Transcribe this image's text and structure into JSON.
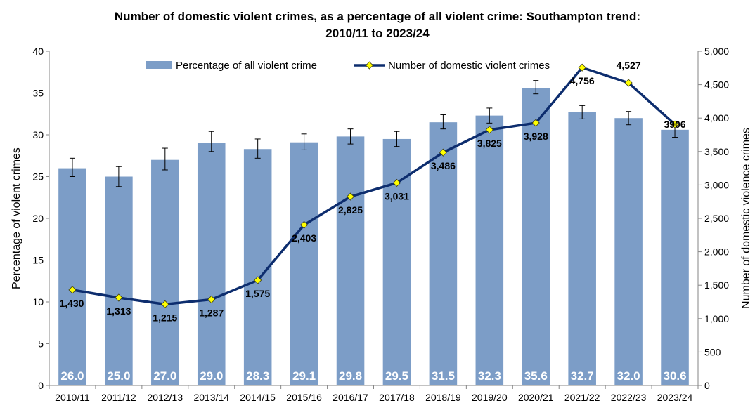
{
  "chart_data": {
    "type": "bar",
    "title": "Number of domestic violent crimes, as a percentage of all violent crime: Southampton trend:",
    "subtitle": "2010/11 to 2023/24",
    "categories": [
      "2010/11",
      "2011/12",
      "2012/13",
      "2013/14",
      "2014/15",
      "2015/16",
      "2016/17",
      "2017/18",
      "2018/19",
      "2019/20",
      "2020/21",
      "2021/22",
      "2022/23",
      "2023/24"
    ],
    "ylabel": "Percentage of violent crimes",
    "y2label": "Number of domestic violence crimes",
    "ylim": [
      0,
      40
    ],
    "y2lim": [
      0,
      5000
    ],
    "yticks": [
      "0",
      "5",
      "10",
      "15",
      "20",
      "25",
      "30",
      "35",
      "40"
    ],
    "y2ticks": [
      "0",
      "500",
      "1,000",
      "1,500",
      "2,000",
      "2,500",
      "3,000",
      "3,500",
      "4,000",
      "4,500",
      "5,000"
    ],
    "grid": false,
    "legend_position": "top",
    "series": [
      {
        "name": "Percentage of all violent crime",
        "type": "bar",
        "axis": "left",
        "color": "#7c9dc7",
        "values": [
          26.0,
          25.0,
          27.0,
          29.0,
          28.3,
          29.1,
          29.8,
          29.5,
          31.5,
          32.3,
          35.6,
          32.7,
          32.0,
          30.6
        ],
        "labels": [
          "26.0",
          "25.0",
          "27.0",
          "29.0",
          "28.3",
          "29.1",
          "29.8",
          "29.5",
          "31.5",
          "32.3",
          "35.6",
          "32.7",
          "32.0",
          "30.6"
        ],
        "error_low": [
          25.0,
          23.8,
          25.8,
          28.0,
          27.2,
          28.2,
          28.9,
          28.6,
          30.7,
          31.4,
          34.9,
          31.9,
          31.2,
          29.7
        ],
        "error_high": [
          27.2,
          26.2,
          28.4,
          30.4,
          29.5,
          30.1,
          30.7,
          30.4,
          32.4,
          33.2,
          36.5,
          33.5,
          32.8,
          31.5
        ]
      },
      {
        "name": "Number of domestic violent crimes",
        "type": "line",
        "axis": "right",
        "color": "#0d2d6e",
        "marker_color": "#ffff00",
        "values": [
          1430,
          1313,
          1215,
          1287,
          1575,
          2403,
          2825,
          3031,
          3486,
          3825,
          3928,
          4756,
          4527,
          3906
        ],
        "labels": [
          "1,430",
          "1,313",
          "1,215",
          "1,287",
          "1,575",
          "2,403",
          "2,825",
          "3,031",
          "3,486",
          "3,825",
          "3,928",
          "4,756",
          "4,527",
          "3906"
        ]
      }
    ]
  }
}
